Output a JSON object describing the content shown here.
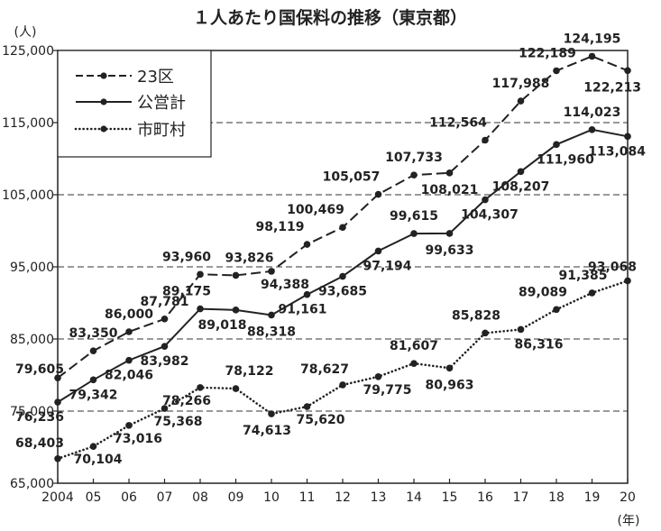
{
  "chart_data": {
    "type": "line",
    "title": "１人あたり国保料の推移（東京都）",
    "y_unit": "(人)",
    "x_unit": "(年)",
    "ylim": [
      65000,
      125000
    ],
    "yticks": [
      65000,
      75000,
      85000,
      95000,
      105000,
      115000,
      125000
    ],
    "ytick_labels": [
      "65,000",
      "75,000",
      "85,000",
      "95,000",
      "105,000",
      "115,000",
      "125,000"
    ],
    "dashed_gridlines": [
      75000,
      85000,
      95000,
      105000,
      115000
    ],
    "x_tick_labels": [
      "2004",
      "05",
      "06",
      "07",
      "08",
      "09",
      "10",
      "11",
      "12",
      "13",
      "14",
      "15",
      "16",
      "17",
      "18",
      "19",
      "20"
    ],
    "legend_position": "top-left",
    "series": [
      {
        "name": "23区",
        "line_style": "dashed",
        "values": [
          79605,
          83350,
          86000,
          87781,
          93960,
          93826,
          94388,
          98119,
          100469,
          105057,
          107733,
          108021,
          112564,
          117988,
          122189,
          124195,
          122213
        ],
        "labels": [
          "79,605",
          "83,350",
          "86,000",
          "87,781",
          "93,960",
          "93,826",
          "94,388",
          "98,119",
          "100,469",
          "105,057",
          "107,733",
          "108,021",
          "112,564",
          "117,988",
          "122,189",
          "124,195",
          "122,213"
        ]
      },
      {
        "name": "公営計",
        "line_style": "solid",
        "values": [
          76236,
          79342,
          82046,
          83982,
          89175,
          89018,
          88318,
          91161,
          93685,
          97194,
          99615,
          99633,
          104307,
          108207,
          111960,
          114023,
          113084
        ],
        "labels": [
          "76,236",
          "79,342",
          "82,046",
          "83,982",
          "89,175",
          "89,018",
          "88,318",
          "91,161",
          "93,685",
          "97,194",
          "99,615",
          "99,633",
          "104,307",
          "108,207",
          "111,960",
          "114,023",
          "113,084"
        ]
      },
      {
        "name": "市町村",
        "line_style": "dotted",
        "values": [
          68403,
          70104,
          73016,
          75368,
          78266,
          78122,
          74613,
          75620,
          78627,
          79775,
          81607,
          80963,
          85828,
          86316,
          89089,
          91385,
          93068
        ],
        "labels": [
          "68,403",
          "70,104",
          "73,016",
          "75,368",
          "78,266",
          "78,122",
          "74,613",
          "75,620",
          "78,627",
          "79,775",
          "81,607",
          "80,963",
          "85,828",
          "86,316",
          "89,089",
          "91,385",
          "93,068"
        ]
      }
    ]
  }
}
